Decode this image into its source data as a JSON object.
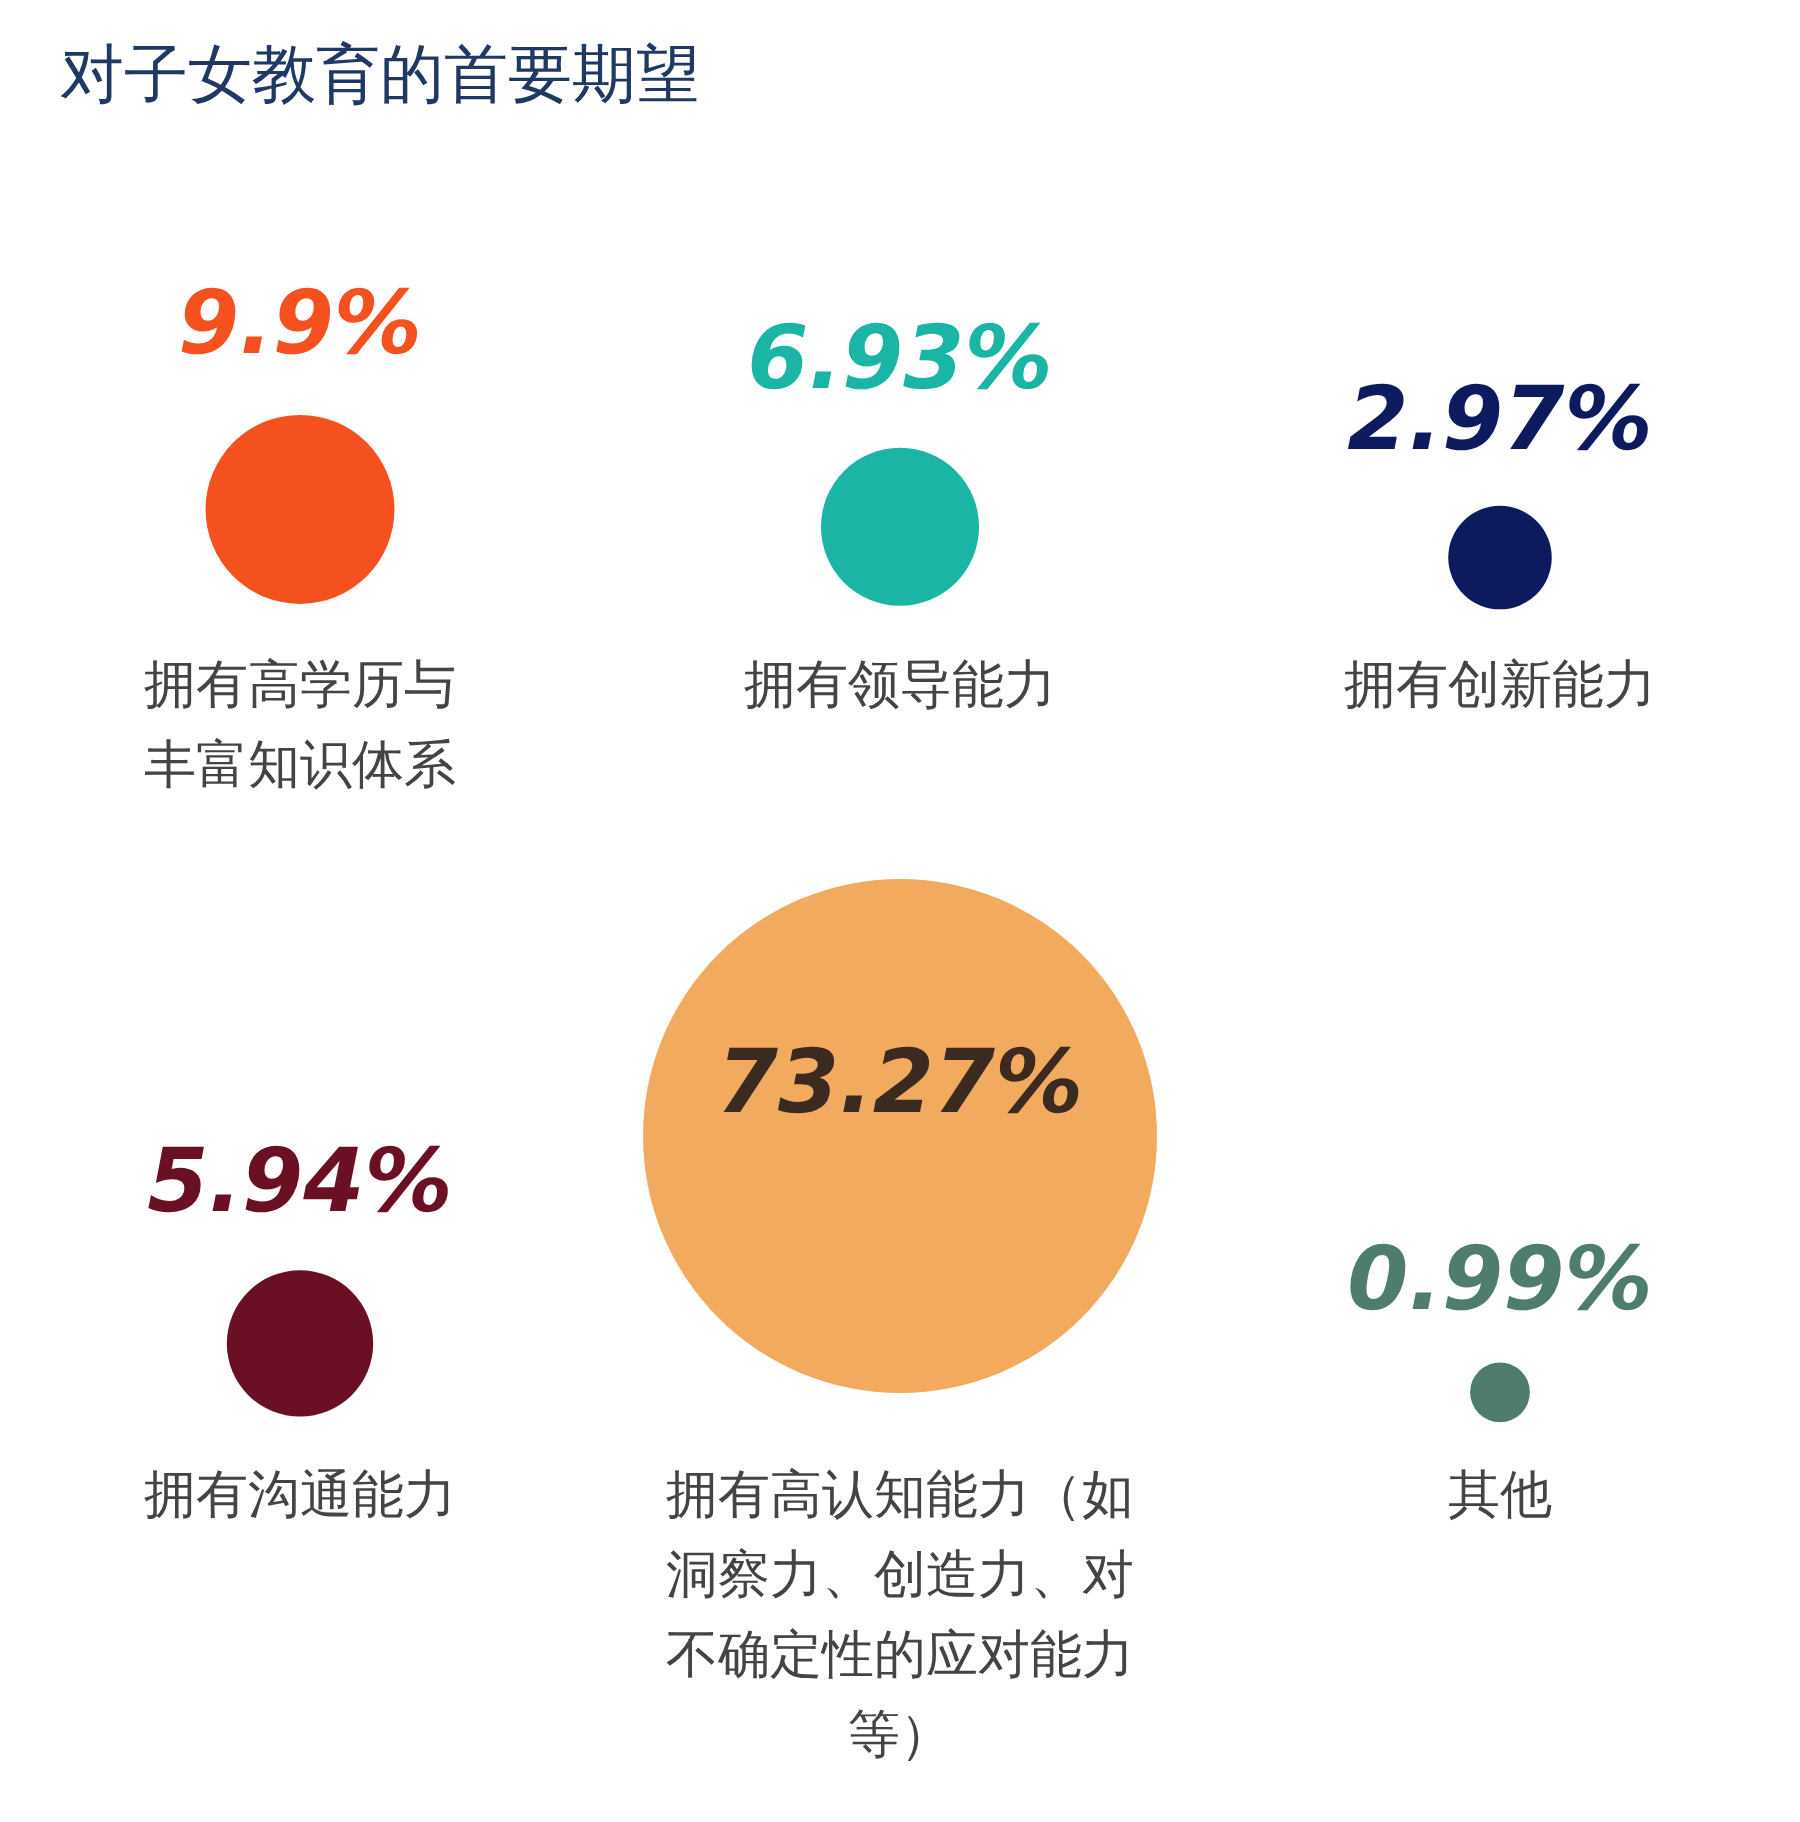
{
  "chart_data": {
    "type": "other",
    "title": "对子女教育的首要期望",
    "categories": [
      "拥有高学历与丰富知识体系",
      "拥有领导能力",
      "拥有创新能力",
      "拥有沟通能力",
      "拥有高认知能力（如洞察力、创造力、对不确定性的应对能力等）",
      "其他"
    ],
    "values": [
      9.9,
      6.93,
      2.97,
      5.94,
      73.27,
      0.99
    ],
    "value_labels": [
      "9.9%",
      "6.93%",
      "2.97%",
      "5.94%",
      "73.27%",
      "0.99%"
    ],
    "colors": [
      "#f4511e",
      "#1ab5a5",
      "#0d1b5e",
      "#6b0f24",
      "#f2ab5e",
      "#4e7d6c"
    ]
  }
}
